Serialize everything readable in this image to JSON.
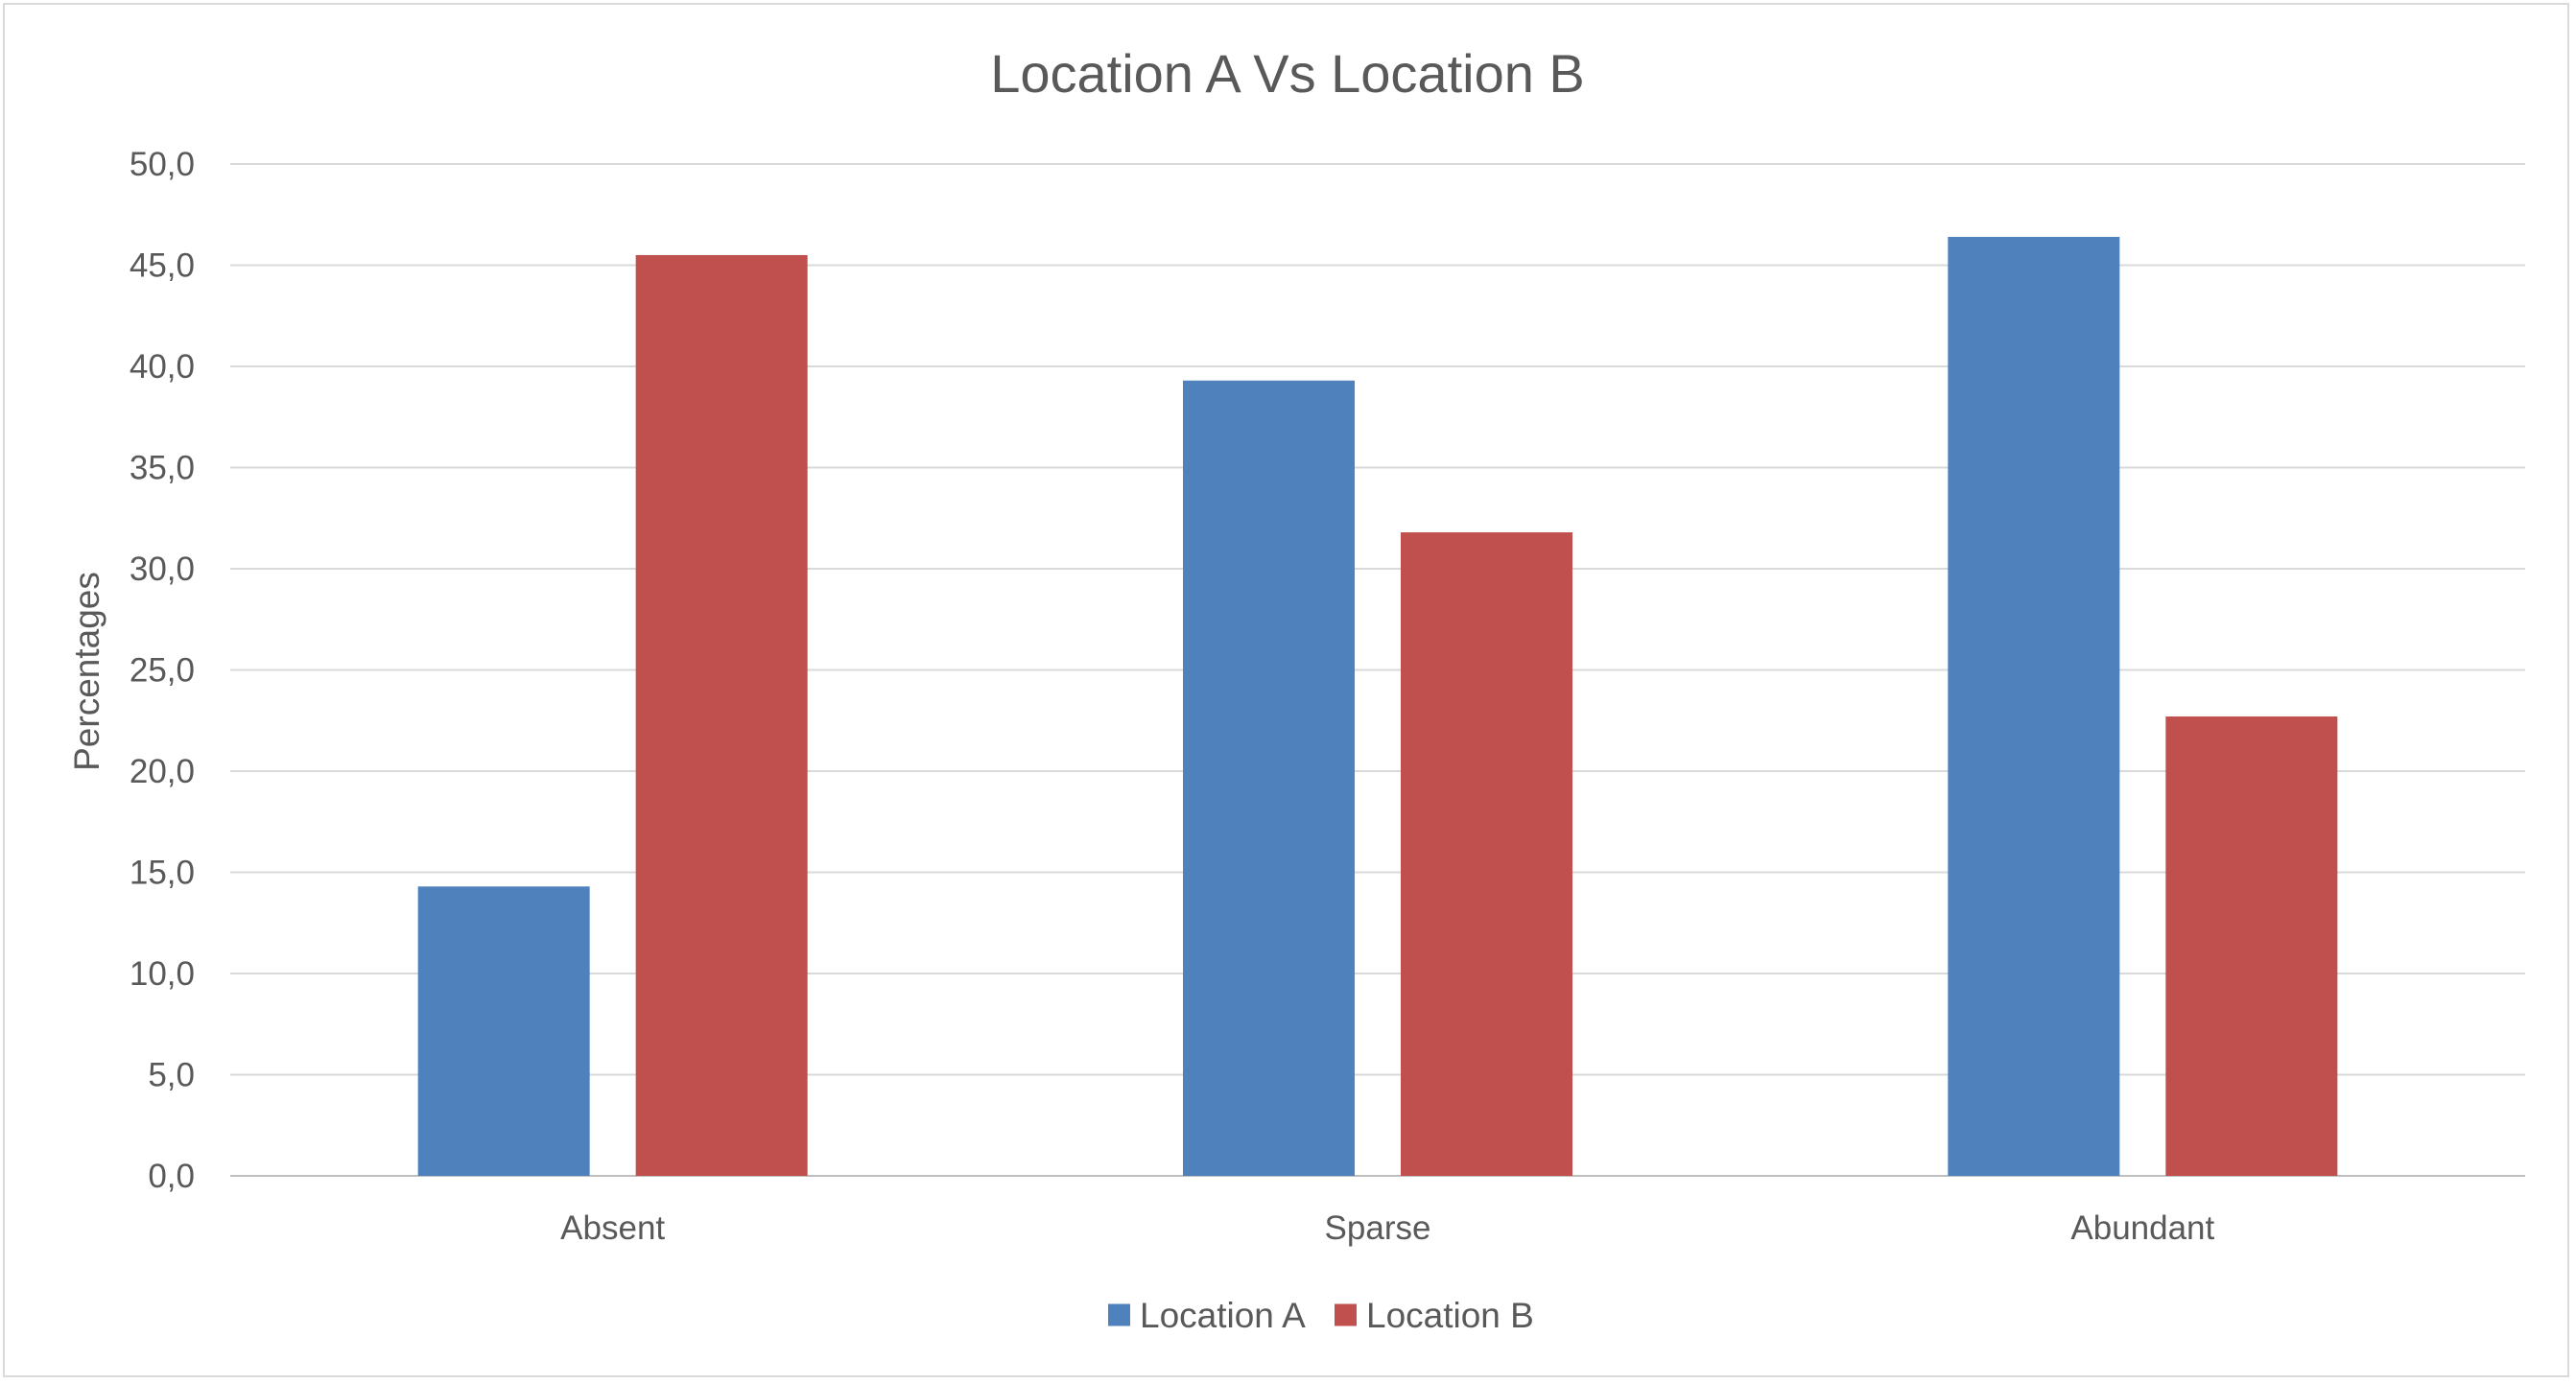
{
  "chart_data": {
    "type": "bar",
    "title": "Location A Vs Location B",
    "xlabel": "",
    "ylabel": "Percentages",
    "categories": [
      "Absent",
      "Sparse",
      "Abundant"
    ],
    "series": [
      {
        "name": "Location A",
        "color": "#4f81bd",
        "values": [
          14.3,
          39.3,
          46.4
        ]
      },
      {
        "name": "Location B",
        "color": "#c0504d",
        "values": [
          45.5,
          31.8,
          22.7
        ]
      }
    ],
    "ylim": [
      0,
      50
    ],
    "yticks": [
      "0,0",
      "5,0",
      "10,0",
      "15,0",
      "20,0",
      "25,0",
      "30,0",
      "35,0",
      "40,0",
      "45,0",
      "50,0"
    ],
    "grid": true,
    "legend_position": "bottom"
  }
}
